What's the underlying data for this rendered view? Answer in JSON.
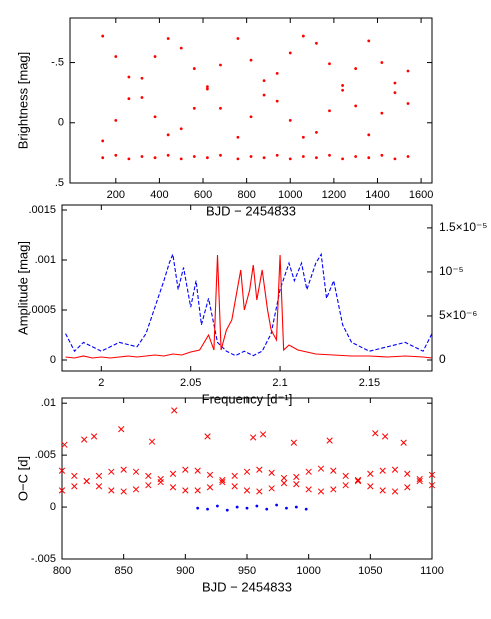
{
  "chart_data": [
    {
      "type": "scatter",
      "xlabel": "BJD − 2454833",
      "ylabel": "Brightness [mag]",
      "xlim": [
        -10,
        1650
      ],
      "ylim": [
        -0.87,
        0.5
      ],
      "y_inverted": true,
      "xticks": [
        200,
        400,
        600,
        800,
        1000,
        1200,
        1400,
        1600
      ],
      "yticks": [
        {
          "value": -0.5,
          "label": "-.5"
        },
        0,
        {
          "value": 0.5,
          "label": ".5"
        }
      ],
      "series": [
        {
          "color": "#ff0000",
          "marker": "dot",
          "x": [
            140,
            200,
            260,
            320,
            380,
            440,
            500,
            560,
            620,
            680,
            760,
            820,
            880,
            940,
            1000,
            1060,
            1120,
            1180,
            1240,
            1300,
            1360,
            1420,
            1480,
            1540,
            140,
            200,
            260,
            320,
            380,
            440,
            500,
            560,
            620,
            680,
            760,
            820,
            880,
            940,
            1000,
            1060,
            1120,
            1180,
            1240,
            1300,
            1360,
            1420,
            1480,
            1540,
            140,
            200,
            260,
            320,
            380,
            440,
            500,
            560,
            620,
            680,
            760,
            820,
            880,
            940,
            1000,
            1060,
            1120,
            1180,
            1240,
            1300,
            1360,
            1420,
            1480,
            1540
          ],
          "values": [
            -0.72,
            -0.55,
            -0.38,
            -0.21,
            -0.05,
            0.1,
            -0.62,
            -0.45,
            -0.28,
            -0.12,
            -0.7,
            -0.52,
            -0.35,
            -0.18,
            -0.02,
            0.12,
            -0.66,
            -0.49,
            -0.31,
            -0.14,
            -0.68,
            -0.5,
            -0.33,
            -0.16,
            0.15,
            -0.02,
            -0.2,
            -0.37,
            -0.55,
            -0.7,
            0.05,
            -0.12,
            -0.3,
            -0.48,
            0.12,
            -0.05,
            -0.23,
            -0.41,
            -0.58,
            -0.72,
            0.08,
            -0.1,
            -0.27,
            -0.45,
            0.1,
            -0.08,
            -0.25,
            -0.43,
            0.29,
            0.27,
            0.3,
            0.28,
            0.29,
            0.27,
            0.3,
            0.28,
            0.29,
            0.27,
            0.3,
            0.28,
            0.29,
            0.27,
            0.3,
            0.28,
            0.29,
            0.27,
            0.3,
            0.28,
            0.29,
            0.27,
            0.3,
            0.28
          ]
        }
      ]
    },
    {
      "type": "line",
      "xlabel": "Frequency [d⁻¹]",
      "ylabel": "Amplitude [mag]",
      "xlim": [
        1.978,
        2.185
      ],
      "ylim": [
        -0.00011,
        0.00155
      ],
      "y2lim": [
        -1.25e-06,
        1.76e-05
      ],
      "xticks": [
        2,
        2.05,
        2.1,
        2.15
      ],
      "yticks": [
        0,
        {
          "value": 0.0005,
          "label": ".0005"
        },
        {
          "value": 0.001,
          "label": ".001"
        },
        {
          "value": 0.0015,
          "label": ".0015"
        }
      ],
      "y2ticks": [
        0,
        {
          "value": 5e-06,
          "label": "5×10⁻⁶"
        },
        {
          "value": 1e-05,
          "label": "10⁻⁵"
        },
        {
          "value": 1.5e-05,
          "label": "1.5×10⁻⁵"
        }
      ],
      "series": [
        {
          "color": "#0000ff",
          "line_style": "dashed",
          "axis": "y2",
          "x": [
            1.98,
            1.985,
            1.99,
            1.995,
            2.0,
            2.01,
            2.02,
            2.025,
            2.03,
            2.035,
            2.038,
            2.04,
            2.043,
            2.046,
            2.05,
            2.053,
            2.056,
            2.06,
            2.065,
            2.07,
            2.075,
            2.08,
            2.085,
            2.09,
            2.095,
            2.1,
            2.105,
            2.108,
            2.112,
            2.115,
            2.12,
            2.123,
            2.126,
            2.13,
            2.135,
            2.14,
            2.15,
            2.16,
            2.17,
            2.18,
            2.185
          ],
          "values": [
            3e-06,
            1e-06,
            2e-06,
            1.5e-06,
            1e-06,
            2e-06,
            1.5e-06,
            3e-06,
            6e-06,
            9e-06,
            1.1e-05,
            1.2e-05,
            8e-06,
            1.05e-05,
            6e-06,
            9e-06,
            4e-06,
            7e-06,
            2e-06,
            1e-06,
            5e-07,
            1e-06,
            5e-07,
            1e-06,
            3e-06,
            8e-06,
            1.1e-05,
            9e-06,
            1.1e-05,
            8e-06,
            1.1e-05,
            1.2e-05,
            7e-06,
            9e-06,
            4e-06,
            2e-06,
            1e-06,
            1.5e-06,
            2e-06,
            1e-06,
            3e-06
          ]
        },
        {
          "color": "#ff0000",
          "line_style": "solid",
          "x": [
            1.98,
            1.985,
            1.99,
            1.995,
            2.0,
            2.005,
            2.01,
            2.015,
            2.02,
            2.025,
            2.03,
            2.035,
            2.04,
            2.045,
            2.05,
            2.055,
            2.06,
            2.063,
            2.065,
            2.067,
            2.07,
            2.073,
            2.075,
            2.078,
            2.08,
            2.083,
            2.085,
            2.087,
            2.09,
            2.093,
            2.095,
            2.098,
            2.1,
            2.102,
            2.105,
            2.11,
            2.115,
            2.12,
            2.13,
            2.14,
            2.15,
            2.16,
            2.17,
            2.18,
            2.185
          ],
          "values": [
            3e-05,
            2e-05,
            4e-05,
            2e-05,
            3e-05,
            2e-05,
            3e-05,
            4e-05,
            3e-05,
            4e-05,
            5e-05,
            4e-05,
            6e-05,
            5e-05,
            8e-05,
            0.0001,
            0.00025,
            0.0001,
            0.00105,
            0.0001,
            0.0003,
            0.0004,
            0.0006,
            0.0009,
            0.0005,
            0.0007,
            0.00095,
            0.0006,
            0.0009,
            0.0005,
            0.0003,
            0.0002,
            0.00105,
            0.0001,
            0.00015,
            0.0001,
            8e-05,
            6e-05,
            5e-05,
            4e-05,
            4e-05,
            3e-05,
            4e-05,
            3e-05,
            2e-05
          ]
        }
      ]
    },
    {
      "type": "scatter",
      "xlabel": "BJD − 2454833",
      "ylabel": "O−C [d]",
      "xlim": [
        800,
        1100
      ],
      "ylim": [
        -0.005,
        0.0105
      ],
      "xticks": [
        800,
        850,
        900,
        950,
        1000,
        1050,
        1100
      ],
      "yticks": [
        {
          "value": -0.005,
          "label": "-.005"
        },
        0,
        {
          "value": 0.005,
          "label": ".005"
        },
        {
          "value": 0.01,
          "label": ".01"
        }
      ],
      "series": [
        {
          "color": "#ff0000",
          "marker": "x",
          "x": [
            800,
            810,
            820,
            830,
            840,
            850,
            860,
            870,
            880,
            890,
            900,
            910,
            920,
            930,
            940,
            950,
            960,
            970,
            980,
            990,
            1000,
            1010,
            1020,
            1030,
            1040,
            1050,
            1060,
            1070,
            1080,
            1090,
            1100,
            800,
            810,
            820,
            830,
            840,
            850,
            860,
            870,
            880,
            890,
            900,
            910,
            920,
            930,
            940,
            950,
            960,
            970,
            980,
            990,
            1000,
            1010,
            1020,
            1030,
            1040,
            1050,
            1060,
            1070,
            1080,
            1090,
            1100,
            802,
            818,
            826,
            848,
            873,
            891,
            918,
            955,
            963,
            988,
            1017,
            1054,
            1062,
            1077
          ],
          "values": [
            0.0035,
            0.003,
            0.0025,
            0.002,
            0.0016,
            0.0015,
            0.0017,
            0.0021,
            0.0027,
            0.0032,
            0.0036,
            0.0035,
            0.0031,
            0.0026,
            0.002,
            0.0016,
            0.0015,
            0.0018,
            0.0023,
            0.0029,
            0.0034,
            0.0037,
            0.0035,
            0.003,
            0.0025,
            0.002,
            0.0016,
            0.0015,
            0.0019,
            0.0025,
            0.0031,
            0.0016,
            0.002,
            0.0025,
            0.003,
            0.0034,
            0.0036,
            0.0034,
            0.003,
            0.0024,
            0.0019,
            0.0016,
            0.0016,
            0.0019,
            0.0024,
            0.003,
            0.0034,
            0.0036,
            0.0033,
            0.0028,
            0.0022,
            0.0017,
            0.0015,
            0.0017,
            0.0021,
            0.0026,
            0.0032,
            0.0035,
            0.0036,
            0.0032,
            0.0027,
            0.0021,
            0.006,
            0.0065,
            0.0068,
            0.0075,
            0.0063,
            0.0093,
            0.0068,
            0.0067,
            0.007,
            0.0062,
            0.0064,
            0.0071,
            0.0068,
            0.0062
          ]
        },
        {
          "color": "#0000ff",
          "marker": "dot",
          "x": [
            910,
            918,
            926,
            934,
            942,
            950,
            958,
            966,
            974,
            982,
            990,
            998
          ],
          "values": [
            -0.0001,
            -0.0002,
            0.0001,
            -0.0003,
            0,
            -0.0001,
            0.0001,
            -0.0002,
            0.0002,
            -0.0001,
            0,
            -0.0002
          ]
        }
      ]
    }
  ]
}
